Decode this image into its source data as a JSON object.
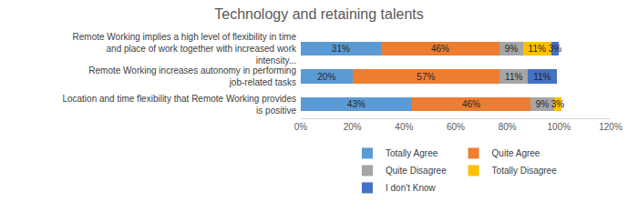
{
  "chart_data": {
    "type": "bar",
    "orientation": "horizontal",
    "stacked": true,
    "title": "Technology and retaining talents",
    "categories": [
      "Remote Working implies a high level of flexibility in time and place of work together with increased work intensity...",
      "Remote Working increases autonomy in performing job-related tasks",
      "Location and time flexibility that Remote Working provides is positive"
    ],
    "series": [
      {
        "name": "Totally Agree",
        "color": "#5B9BD5",
        "values": [
          31,
          20,
          43
        ],
        "value_labels": [
          "31%",
          "20%",
          "43%"
        ]
      },
      {
        "name": "Quite Agree",
        "color": "#ED7D31",
        "values": [
          46,
          57,
          46
        ],
        "value_labels": [
          "46%",
          "57%",
          "46%"
        ]
      },
      {
        "name": "Quite Disagree",
        "color": "#A5A5A5",
        "values": [
          9,
          11,
          9
        ],
        "value_labels": [
          "9%",
          "11%",
          "9%"
        ]
      },
      {
        "name": "Totally Disagree",
        "color": "#FFC000",
        "values": [
          11,
          null,
          3
        ],
        "value_labels": [
          "11%",
          null,
          "3%"
        ]
      },
      {
        "name": "I don't Know",
        "color": "#4472C4",
        "values": [
          3,
          11,
          null
        ],
        "value_labels": [
          "3%",
          "11%",
          null
        ]
      }
    ],
    "xlim": [
      0,
      120
    ],
    "xticks": [
      {
        "value": 0,
        "label": "0%"
      },
      {
        "value": 20,
        "label": "20%"
      },
      {
        "value": 40,
        "label": "40%"
      },
      {
        "value": 60,
        "label": "60%"
      },
      {
        "value": 80,
        "label": "80%"
      },
      {
        "value": 100,
        "label": "100%"
      },
      {
        "value": 120,
        "label": "120%"
      }
    ],
    "grid": false,
    "legend": "bottom",
    "data_labels": true
  }
}
